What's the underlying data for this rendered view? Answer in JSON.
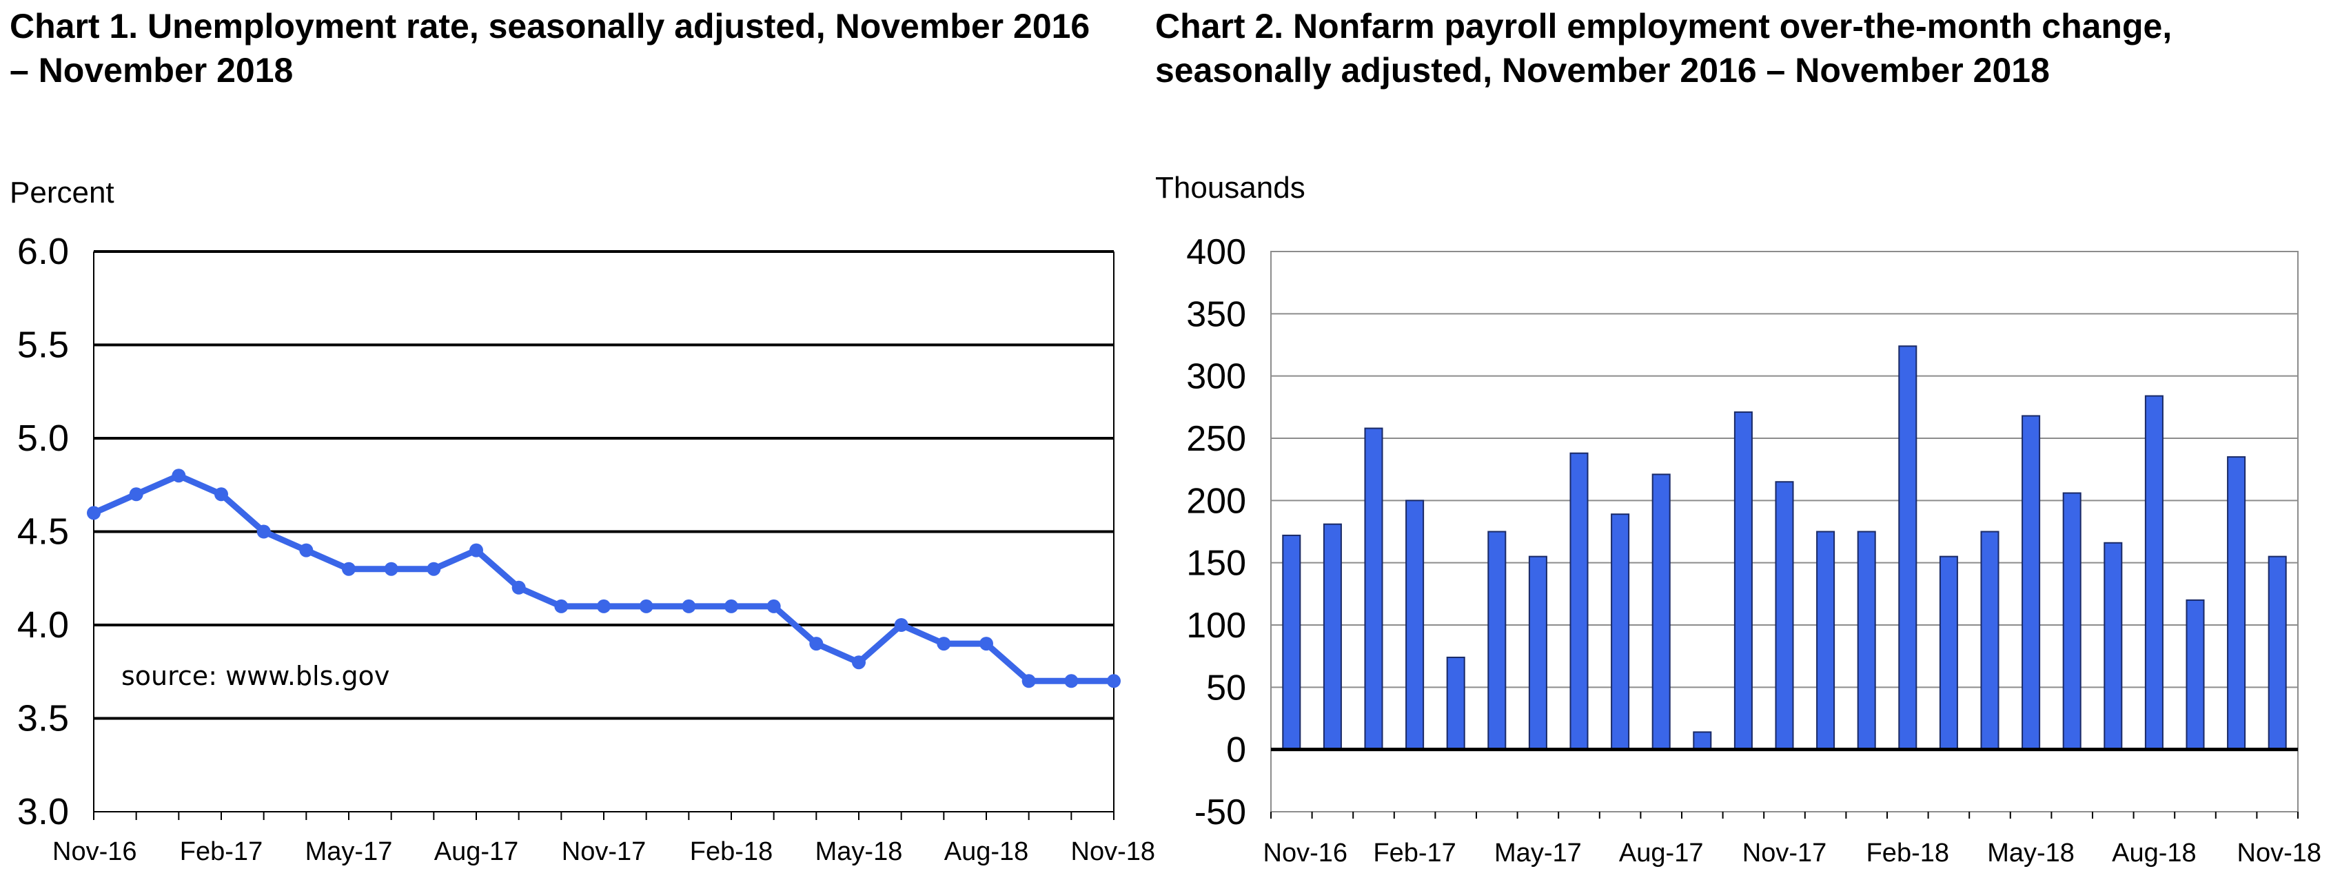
{
  "chart_data": [
    {
      "type": "line",
      "title": "Chart 1. Unemployment rate, seasonally adjusted, November 2016 – November 2018",
      "ylabel": "Percent",
      "xlabel": "",
      "ylim": [
        3.0,
        6.0
      ],
      "y_ticks": [
        "6.0",
        "5.5",
        "5.0",
        "4.5",
        "4.0",
        "3.5",
        "3.0"
      ],
      "x_tick_labels": [
        "Nov-16",
        "Feb-17",
        "May-17",
        "Aug-17",
        "Nov-17",
        "Feb-18",
        "May-18",
        "Aug-18",
        "Nov-18"
      ],
      "x": [
        "Nov-16",
        "Dec-16",
        "Jan-17",
        "Feb-17",
        "Mar-17",
        "Apr-17",
        "May-17",
        "Jun-17",
        "Jul-17",
        "Aug-17",
        "Sep-17",
        "Oct-17",
        "Nov-17",
        "Dec-17",
        "Jan-18",
        "Feb-18",
        "Mar-18",
        "Apr-18",
        "May-18",
        "Jun-18",
        "Jul-18",
        "Aug-18",
        "Sep-18",
        "Oct-18",
        "Nov-18"
      ],
      "values": [
        4.6,
        4.7,
        4.8,
        4.7,
        4.5,
        4.4,
        4.3,
        4.3,
        4.3,
        4.4,
        4.2,
        4.1,
        4.1,
        4.1,
        4.1,
        4.1,
        4.1,
        3.9,
        3.8,
        4.0,
        3.9,
        3.9,
        3.7,
        3.7,
        3.7
      ],
      "grid": true,
      "color": "#3a66e8",
      "annotation": "source: www.bls.gov"
    },
    {
      "type": "bar",
      "title": "Chart 2. Nonfarm payroll employment over-the-month change, seasonally adjusted, November 2016 – November 2018",
      "ylabel": "Thousands",
      "xlabel": "",
      "ylim": [
        -50,
        400
      ],
      "y_ticks": [
        "400",
        "350",
        "300",
        "250",
        "200",
        "150",
        "100",
        "50",
        "0",
        "-50"
      ],
      "x_tick_labels": [
        "Nov-16",
        "Feb-17",
        "May-17",
        "Aug-17",
        "Nov-17",
        "Feb-18",
        "May-18",
        "Aug-18",
        "Nov-18"
      ],
      "categories": [
        "Nov-16",
        "Dec-16",
        "Jan-17",
        "Feb-17",
        "Mar-17",
        "Apr-17",
        "May-17",
        "Jun-17",
        "Jul-17",
        "Aug-17",
        "Sep-17",
        "Oct-17",
        "Nov-17",
        "Dec-17",
        "Jan-18",
        "Feb-18",
        "Mar-18",
        "Apr-18",
        "May-18",
        "Jun-18",
        "Jul-18",
        "Aug-18",
        "Sep-18",
        "Oct-18",
        "Nov-18"
      ],
      "values": [
        172,
        181,
        258,
        200,
        74,
        175,
        155,
        238,
        189,
        221,
        14,
        271,
        215,
        175,
        175,
        324,
        155,
        175,
        268,
        206,
        166,
        284,
        120,
        235,
        155
      ],
      "grid": true,
      "color": "#3a66e8"
    }
  ]
}
